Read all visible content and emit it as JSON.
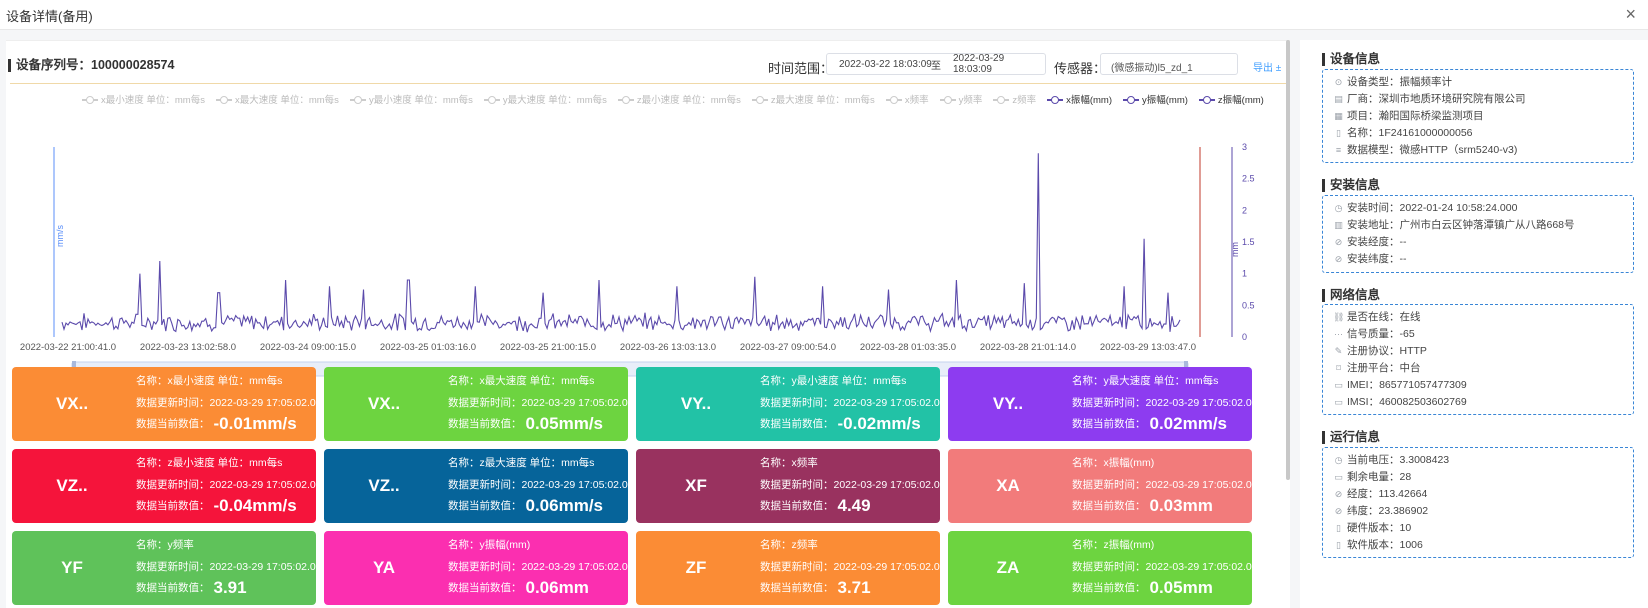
{
  "window": {
    "title": "设备详情(备用)",
    "close": "×"
  },
  "header": {
    "serial": "设备序列号：100000028574",
    "range_label": "时间范围：",
    "date_start": "2022-03-22 18:03:09",
    "date_sep": "至",
    "date_end": "2022-03-29 18:03:09",
    "sensor_label": "传感器：",
    "sensor_value": "(微感振动)l5_zd_1",
    "export": "导出 ±"
  },
  "legend": [
    {
      "label": "x最小速度  单位：mm每s",
      "active": false
    },
    {
      "label": "x最大速度  单位：mm每s",
      "active": false
    },
    {
      "label": "y最小速度  单位：mm每s",
      "active": false
    },
    {
      "label": "y最大速度  单位：mm每s",
      "active": false
    },
    {
      "label": "z最小速度  单位：mm每s",
      "active": false
    },
    {
      "label": "z最大速度  单位：mm每s",
      "active": false
    },
    {
      "label": "x频率",
      "active": false
    },
    {
      "label": "y频率",
      "active": false
    },
    {
      "label": "z频率",
      "active": false
    },
    {
      "label": "x振幅(mm)",
      "active": true
    },
    {
      "label": "y振幅(mm)",
      "active": true
    },
    {
      "label": "z振幅(mm)",
      "active": true
    }
  ],
  "chart_data": {
    "type": "line",
    "ylabel_left": "mm/s",
    "ylabel_right": "mm",
    "y_right_ticks": [
      "0",
      "0.5",
      "1",
      "1.5",
      "2",
      "2.5",
      "3"
    ],
    "ylim": [
      0,
      3
    ],
    "x_ticks": [
      "2022-03-22 21:00:41.0",
      "2022-03-23 13:02:58.0",
      "2022-03-24 09:00:15.0",
      "2022-03-25 01:03:16.0",
      "2022-03-25 21:00:15.0",
      "2022-03-26 13:03:13.0",
      "2022-03-27 09:00:54.0",
      "2022-03-28 01:03:35.0",
      "2022-03-28 21:01:14.0",
      "2022-03-29 13:03:47.0"
    ],
    "baseline": 0.2,
    "noise": 0.12,
    "spikes": [
      {
        "t": 0.07,
        "y": 1.0
      },
      {
        "t": 0.088,
        "y": 1.2
      },
      {
        "t": 0.14,
        "y": 0.7
      },
      {
        "t": 0.2,
        "y": 0.9
      },
      {
        "t": 0.24,
        "y": 0.8
      },
      {
        "t": 0.27,
        "y": 0.75
      },
      {
        "t": 0.31,
        "y": 0.9
      },
      {
        "t": 0.37,
        "y": 0.8
      },
      {
        "t": 0.43,
        "y": 0.7
      },
      {
        "t": 0.48,
        "y": 0.9
      },
      {
        "t": 0.55,
        "y": 0.8
      },
      {
        "t": 0.62,
        "y": 0.95
      },
      {
        "t": 0.68,
        "y": 0.8
      },
      {
        "t": 0.74,
        "y": 0.75
      },
      {
        "t": 0.8,
        "y": 0.9
      },
      {
        "t": 0.86,
        "y": 0.85
      },
      {
        "t": 0.873,
        "y": 2.9
      },
      {
        "t": 0.95,
        "y": 0.8
      },
      {
        "t": 0.968,
        "y": 1.55
      },
      {
        "t": 0.99,
        "y": 0.7
      }
    ],
    "series": [
      {
        "name": "x振幅(mm)",
        "color": "#5b4aab"
      },
      {
        "name": "y振幅(mm)",
        "color": "#5b4aab"
      },
      {
        "name": "z振幅(mm)",
        "color": "#5b4aab"
      }
    ]
  },
  "cards": [
    {
      "code": "VX..",
      "name": "名称：x最小速度 单位：mm每s",
      "time": "数据更新时间：2022-03-29 17:05:02.0",
      "value_label": "数据当前数值：",
      "value": "-0.01mm/s",
      "color": "#fb8c35"
    },
    {
      "code": "VX..",
      "name": "名称：x最大速度 单位：mm每s",
      "time": "数据更新时间：2022-03-29 17:05:02.0",
      "value_label": "数据当前数值：",
      "value": "0.05mm/s",
      "color": "#6dd440"
    },
    {
      "code": "VY..",
      "name": "名称：y最小速度 单位：mm每s",
      "time": "数据更新时间：2022-03-29 17:05:02.0",
      "value_label": "数据当前数值：",
      "value": "-0.02mm/s",
      "color": "#22c2a6"
    },
    {
      "code": "VY..",
      "name": "名称：y最大速度 单位：mm每s",
      "time": "数据更新时间：2022-03-29 17:05:02.0",
      "value_label": "数据当前数值：",
      "value": "0.02mm/s",
      "color": "#8d3cf0"
    },
    {
      "code": "VZ..",
      "name": "名称：z最小速度 单位：mm每s",
      "time": "数据更新时间：2022-03-29 17:05:02.0",
      "value_label": "数据当前数值：",
      "value": "-0.04mm/s",
      "color": "#f5143b"
    },
    {
      "code": "VZ..",
      "name": "名称：z最大速度 单位：mm每s",
      "time": "数据更新时间：2022-03-29 17:05:02.0",
      "value_label": "数据当前数值：",
      "value": "0.06mm/s",
      "color": "#06649a"
    },
    {
      "code": "XF",
      "name": "名称：x频率",
      "time": "数据更新时间：2022-03-29 17:05:02.0",
      "value_label": "数据当前数值：",
      "value": "4.49",
      "color": "#99325f"
    },
    {
      "code": "XA",
      "name": "名称：x振幅(mm)",
      "time": "数据更新时间：2022-03-29 17:05:02.0",
      "value_label": "数据当前数值：",
      "value": "0.03mm",
      "color": "#f27b7b"
    },
    {
      "code": "YF",
      "name": "名称：y频率",
      "time": "数据更新时间：2022-03-29 17:05:02.0",
      "value_label": "数据当前数值：",
      "value": "3.91",
      "color": "#5fc25a"
    },
    {
      "code": "YA",
      "name": "名称：y振幅(mm)",
      "time": "数据更新时间：2022-03-29 17:05:02.0",
      "value_label": "数据当前数值：",
      "value": "0.06mm",
      "color": "#fb2fb0"
    },
    {
      "code": "ZF",
      "name": "名称：z频率",
      "time": "数据更新时间：2022-03-29 17:05:02.0",
      "value_label": "数据当前数值：",
      "value": "3.71",
      "color": "#fb8c35"
    },
    {
      "code": "ZA",
      "name": "名称：z振幅(mm)",
      "time": "数据更新时间：2022-03-29 17:05:02.0",
      "value_label": "数据当前数值：",
      "value": "0.05mm",
      "color": "#6dd440"
    }
  ],
  "device_info": {
    "title": "设备信息",
    "rows": [
      {
        "icon": "device-type-icon",
        "text": "设备类型：振幅频率计"
      },
      {
        "icon": "factory-icon",
        "text": "厂商：深圳市地质环境研究院有限公司"
      },
      {
        "icon": "project-icon",
        "text": "项目：瀚阳国际桥梁监测项目"
      },
      {
        "icon": "name-icon",
        "text": "名称：1F24161000000056"
      },
      {
        "icon": "database-icon",
        "text": "数据模型：微感HTTP（srm5240-v3)"
      }
    ]
  },
  "install_info": {
    "title": "安装信息",
    "rows": [
      {
        "icon": "clock-icon",
        "text": "安装时间：2022-01-24 10:58:24.000"
      },
      {
        "icon": "building-icon",
        "text": "安装地址：广州市白云区钟落潭镇广从八路668号"
      },
      {
        "icon": "compass-icon",
        "text": "安装经度：--"
      },
      {
        "icon": "compass-icon",
        "text": "安装纬度：--"
      }
    ]
  },
  "network_info": {
    "title": "网络信息",
    "rows": [
      {
        "icon": "link-icon",
        "text": "是否在线：在线"
      },
      {
        "icon": "signal-icon",
        "text": "信号质量：-65"
      },
      {
        "icon": "edit-icon",
        "text": "注册协议：HTTP"
      },
      {
        "icon": "bookmark-icon",
        "text": "注册平台：中台"
      },
      {
        "icon": "message-icon",
        "text": "IMEI：865771057477309"
      },
      {
        "icon": "message-icon",
        "text": "IMSI：460082503602769"
      }
    ]
  },
  "run_info": {
    "title": "运行信息",
    "rows": [
      {
        "icon": "clock-icon",
        "text": "当前电压：3.3008423"
      },
      {
        "icon": "message-icon",
        "text": "剩余电量：28"
      },
      {
        "icon": "compass-icon",
        "text": "经度：113.42664"
      },
      {
        "icon": "compass-icon",
        "text": "纬度：23.386902"
      },
      {
        "icon": "file-icon",
        "text": "硬件版本：10"
      },
      {
        "icon": "file-icon",
        "text": "软件版本：1006"
      }
    ]
  }
}
